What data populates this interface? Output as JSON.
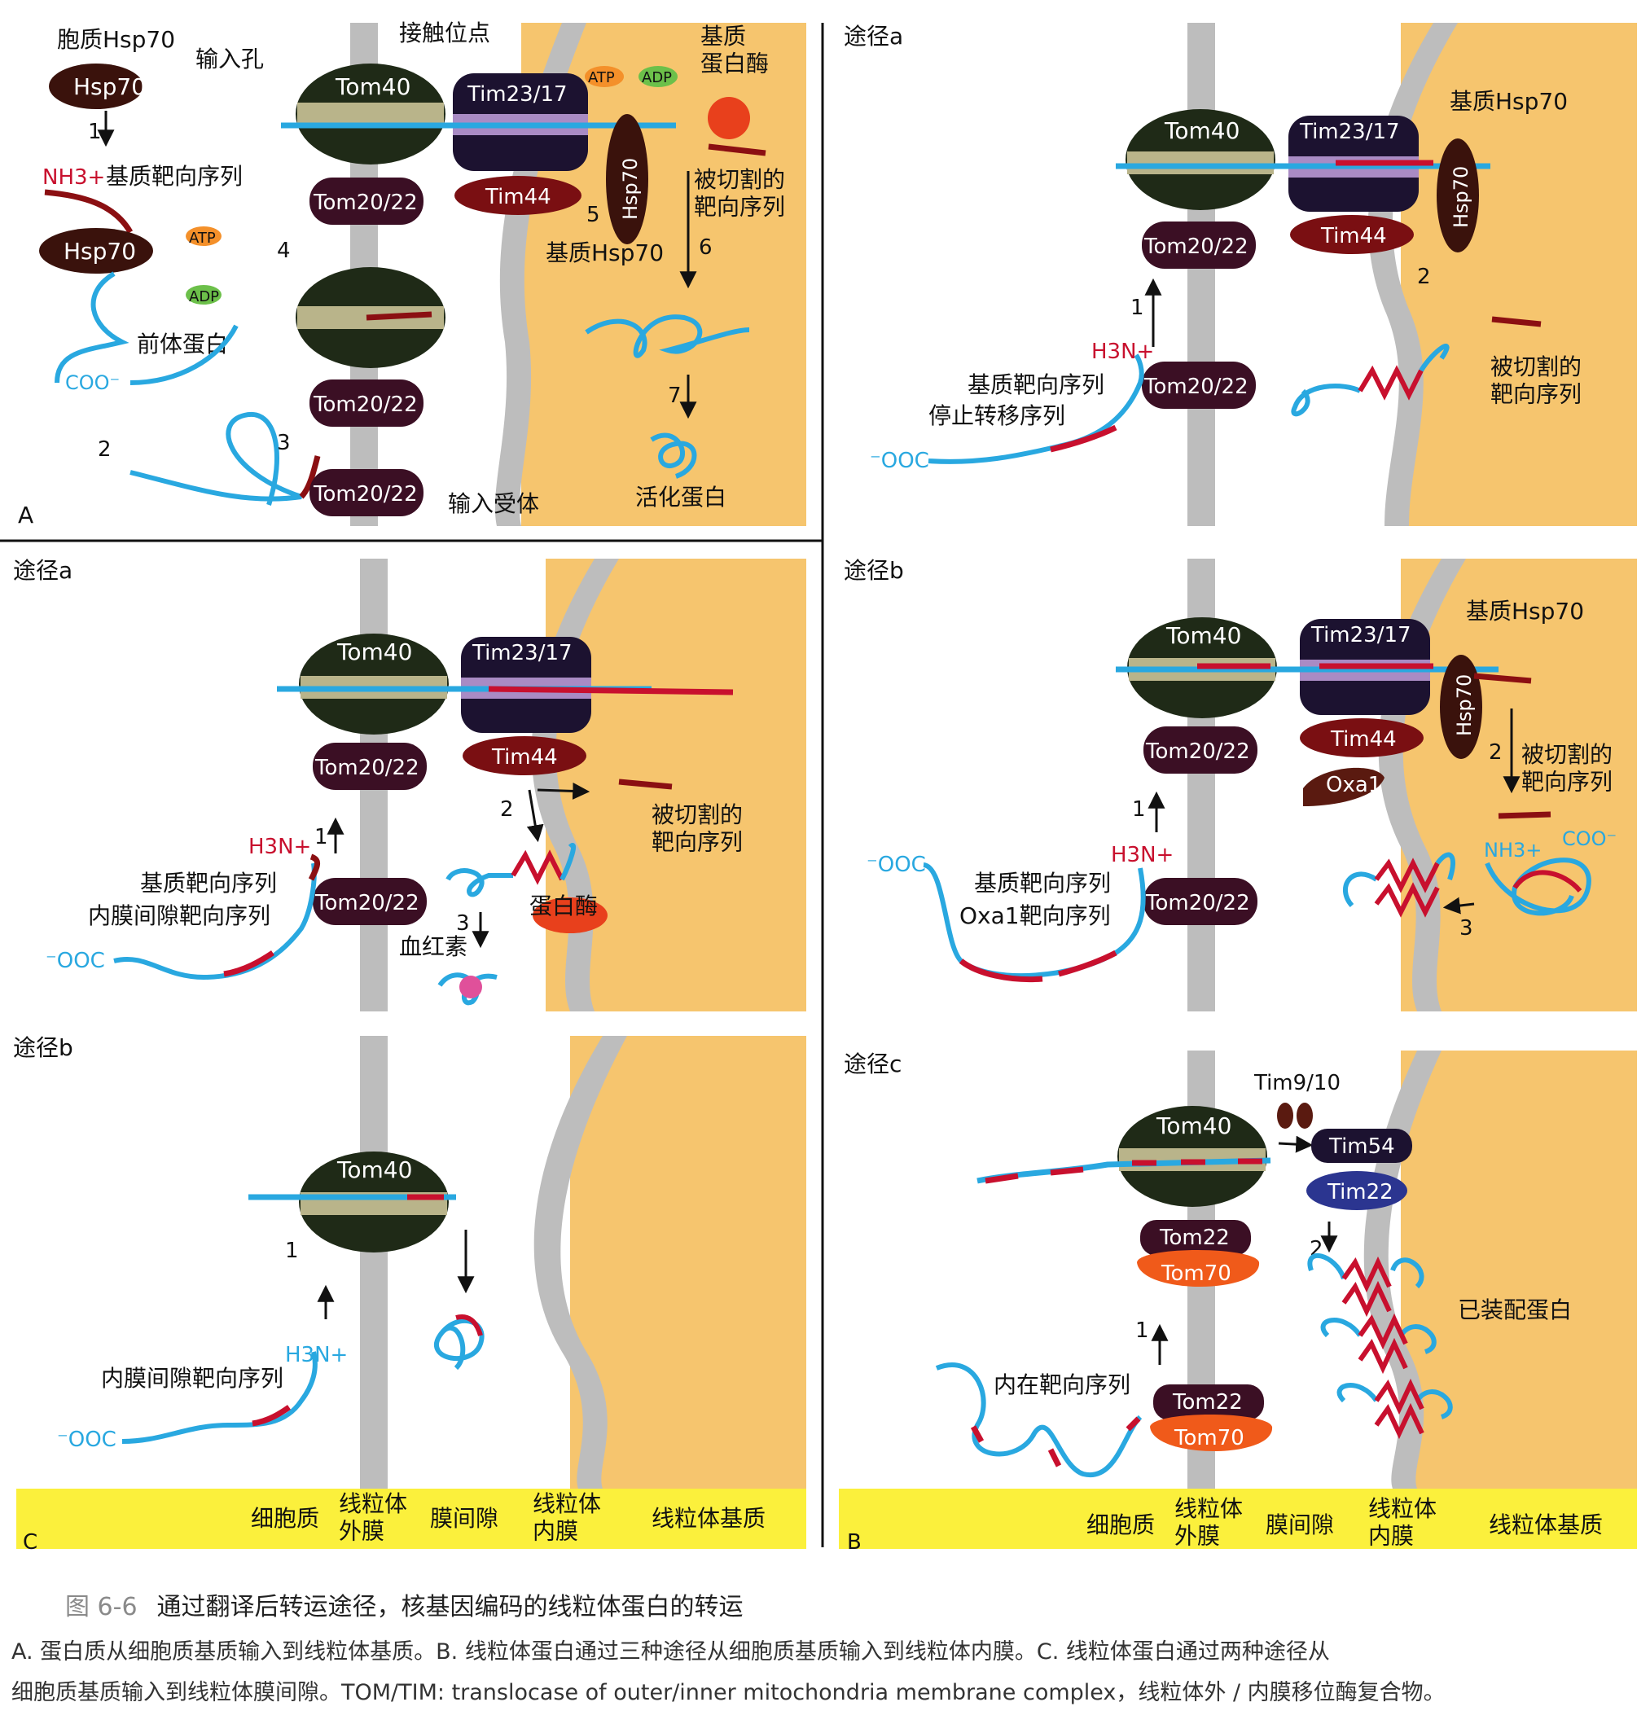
{
  "panelA": {
    "letter": "A",
    "cyto_hsp70_label": "胞质Hsp70",
    "import_pore_label": "输入孔",
    "contact_site_label": "接触位点",
    "matrix_protease_label": "基质\n蛋白酶",
    "cleaved_signal_label": "被切割的\n靶向序列",
    "matrix_hsp70_label": "基质Hsp70",
    "nh3_label": "NH3+",
    "matrix_targeting_label": "基质靶向序列",
    "precursor_label": "前体蛋白",
    "coo_label": "COO⁻",
    "import_receptor_label": "输入受体",
    "active_protein_label": "活化蛋白",
    "atp": "ATP",
    "adp": "ADP",
    "steps": [
      "1",
      "2",
      "3",
      "4",
      "5",
      "6",
      "7"
    ]
  },
  "panelB": {
    "letter": "B",
    "path_a_title": "途径a",
    "path_a_matrix_hsp70": "基质Hsp70",
    "path_a_cleaved": "被切割的\n靶向序列",
    "path_a_matrix_targeting": "基质靶向序列",
    "path_a_stop_transfer": "停止转移序列",
    "path_b_title": "途径b",
    "path_b_matrix_hsp70": "基质Hsp70",
    "path_b_cleaved": "被切割的\n靶向序列",
    "path_b_matrix_targeting": "基质靶向序列",
    "path_b_oxa1_targeting": "Oxa1靶向序列",
    "path_c_title": "途径c",
    "path_c_internal_targeting": "内在靶向序列",
    "path_c_assembled": "已装配蛋白",
    "h3n": "H3N+",
    "coo": "⁻OOC",
    "nh3": "NH3+",
    "coo2": "COO⁻"
  },
  "panelC": {
    "letter": "C",
    "path_a_title": "途径a",
    "path_a_cleaved": "被切割的\n靶向序列",
    "path_a_matrix_targeting": "基质靶向序列",
    "path_a_ims_targeting": "内膜间隙靶向序列",
    "path_a_protease": "蛋白酶",
    "path_a_heme": "血红素",
    "path_b_title": "途径b",
    "path_b_ims_targeting": "内膜间隙靶向序列"
  },
  "proteins": {
    "tom40": "Tom40",
    "tim2317": "Tim23/17",
    "tom2022": "Tom20/22",
    "tim44": "Tim44",
    "hsp70": "Hsp70",
    "oxa1": "Oxa1",
    "tim910": "Tim9/10",
    "tim54": "Tim54",
    "tim22": "Tim22",
    "tom22": "Tom22",
    "tom70": "Tom70"
  },
  "compartments": {
    "cytosol": "细胞质",
    "outer_membrane": "线粒体\n外膜",
    "ims": "膜间隙",
    "inner_membrane": "线粒体\n内膜",
    "matrix": "线粒体基质"
  },
  "caption": {
    "figure_no": "图 6-6",
    "title": "通过翻译后转运途径，核基因编码的线粒体蛋白的转运",
    "line1": "A. 蛋白质从细胞质基质输入到线粒体基质。B. 线粒体蛋白通过三种途径从细胞质基质输入到线粒体内膜。C. 线粒体蛋白通过两种途径从",
    "line2": "细胞质基质输入到线粒体膜间隙。TOM/TIM: translocase of outer/inner mitochondria membrane complex，线粒体外 / 内膜移位酶复合物。"
  },
  "colors": {
    "matrix": "#f6c56e",
    "membrane": "#bdbdbd",
    "tom40": "#1f2a17",
    "tom40_band": "#b9b48a",
    "tim2317": "#1c1230",
    "tim_band": "#a98bc4",
    "receptor": "#3b0f24",
    "tim44": "#7a0f12",
    "hsp70": "#3a120c",
    "polypeptide": "#29a8e0",
    "signal": "#c8102e",
    "tom70": "#f05a1a",
    "tim22": "#2b3590",
    "label_bar": "#fbf03c"
  }
}
